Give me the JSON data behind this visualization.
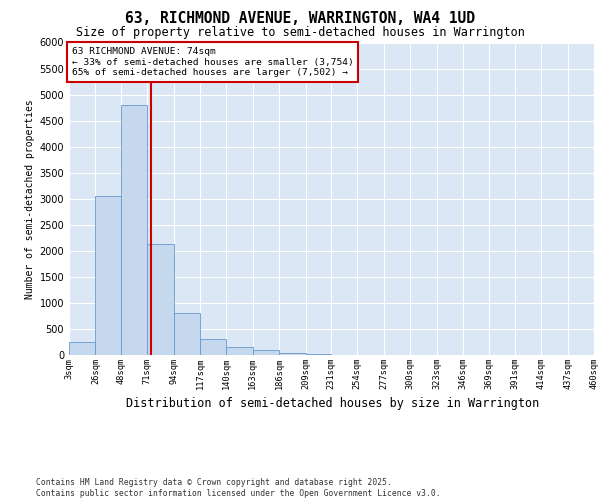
{
  "title_line1": "63, RICHMOND AVENUE, WARRINGTON, WA4 1UD",
  "title_line2": "Size of property relative to semi-detached houses in Warrington",
  "xlabel": "Distribution of semi-detached houses by size in Warrington",
  "ylabel": "Number of semi-detached properties",
  "annotation_title": "63 RICHMOND AVENUE: 74sqm",
  "annotation_line2": "← 33% of semi-detached houses are smaller (3,754)",
  "annotation_line3": "65% of semi-detached houses are larger (7,502) →",
  "footer_line1": "Contains HM Land Registry data © Crown copyright and database right 2025.",
  "footer_line2": "Contains public sector information licensed under the Open Government Licence v3.0.",
  "property_size_sqm": 74,
  "bin_edges": [
    3,
    26,
    48,
    71,
    94,
    117,
    140,
    163,
    186,
    209,
    231,
    254,
    277,
    300,
    323,
    346,
    369,
    391,
    414,
    437,
    460
  ],
  "bin_counts": [
    250,
    3050,
    4800,
    2130,
    800,
    300,
    150,
    90,
    40,
    12,
    6,
    3,
    1,
    0,
    0,
    0,
    0,
    0,
    0,
    0
  ],
  "bar_facecolor": "#c5d8ee",
  "bar_edgecolor": "#6699cc",
  "vline_color": "#cc0000",
  "ann_box_edgecolor": "#cc0000",
  "bg_color": "#dce7f5",
  "grid_color": "#ffffff",
  "ylim_max": 6000,
  "ytick_step": 500
}
